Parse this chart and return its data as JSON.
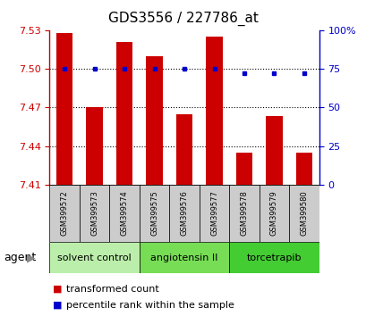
{
  "title": "GDS3556 / 227786_at",
  "samples": [
    "GSM399572",
    "GSM399573",
    "GSM399574",
    "GSM399575",
    "GSM399576",
    "GSM399577",
    "GSM399578",
    "GSM399579",
    "GSM399580"
  ],
  "bar_values": [
    7.528,
    7.47,
    7.521,
    7.51,
    7.465,
    7.525,
    7.435,
    7.463,
    7.435
  ],
  "percentile_values": [
    75,
    75,
    75,
    75,
    75,
    75,
    72,
    72,
    72
  ],
  "ylim_left": [
    7.41,
    7.53
  ],
  "ylim_right": [
    0,
    100
  ],
  "yticks_left": [
    7.41,
    7.44,
    7.47,
    7.5,
    7.53
  ],
  "yticks_right": [
    0,
    25,
    50,
    75,
    100
  ],
  "ytick_labels_right": [
    "0",
    "25",
    "50",
    "75",
    "100%"
  ],
  "bar_color": "#cc0000",
  "dot_color": "#0000cc",
  "bar_baseline": 7.41,
  "groups": [
    {
      "label": "solvent control",
      "indices": [
        0,
        1,
        2
      ],
      "color": "#bbeeaa"
    },
    {
      "label": "angiotensin II",
      "indices": [
        3,
        4,
        5
      ],
      "color": "#77dd55"
    },
    {
      "label": "torcetrapib",
      "indices": [
        6,
        7,
        8
      ],
      "color": "#44cc33"
    }
  ],
  "sample_box_color": "#cccccc",
  "grid_yticks": [
    7.44,
    7.47,
    7.5
  ],
  "grid_color": "black",
  "title_fontsize": 11,
  "tick_fontsize": 8,
  "sample_fontsize": 6,
  "group_fontsize": 8,
  "legend_fontsize": 8,
  "agent_fontsize": 9
}
